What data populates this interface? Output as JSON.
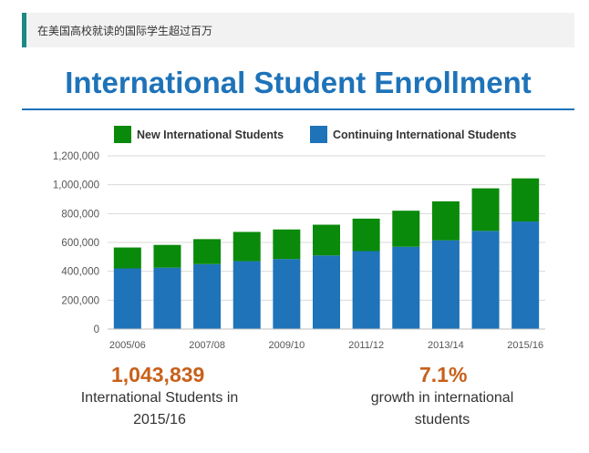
{
  "header": {
    "text": "在美国高校就读的国际学生超过百万"
  },
  "title": "International Student Enrollment",
  "chart_data": {
    "type": "bar",
    "stacked": true,
    "categories": [
      "2005/06",
      "2006/07",
      "2007/08",
      "2008/09",
      "2009/10",
      "2010/11",
      "2011/12",
      "2012/13",
      "2013/14",
      "2014/15",
      "2015/16"
    ],
    "x_tick_labels": [
      "2005/06",
      "",
      "2007/08",
      "",
      "2009/10",
      "",
      "2011/12",
      "",
      "2013/14",
      "",
      "2015/16"
    ],
    "series": [
      {
        "name": "Continuing International Students",
        "color": "#1e73b9",
        "values": [
          420000,
          425000,
          450000,
          470000,
          485000,
          510000,
          540000,
          570000,
          615000,
          680000,
          745000
        ]
      },
      {
        "name": "New International Students",
        "color": "#0a8a0a",
        "values": [
          145000,
          158000,
          173000,
          203000,
          205000,
          213000,
          225000,
          250000,
          270000,
          295000,
          299000
        ]
      }
    ],
    "legend_order": [
      "New International Students",
      "Continuing International Students"
    ],
    "legend_position": "top",
    "y_ticks": [
      "0",
      "200,000",
      "400,000",
      "600,000",
      "800,000",
      "1,000,000",
      "1,200,000"
    ],
    "ylim": [
      0,
      1200000
    ],
    "grid": true
  },
  "stats": [
    {
      "value": "1,043,839",
      "caption_lines": [
        "International Students in",
        "2015/16"
      ]
    },
    {
      "value": "7.1%",
      "caption_lines": [
        "growth in international",
        "students"
      ]
    }
  ]
}
